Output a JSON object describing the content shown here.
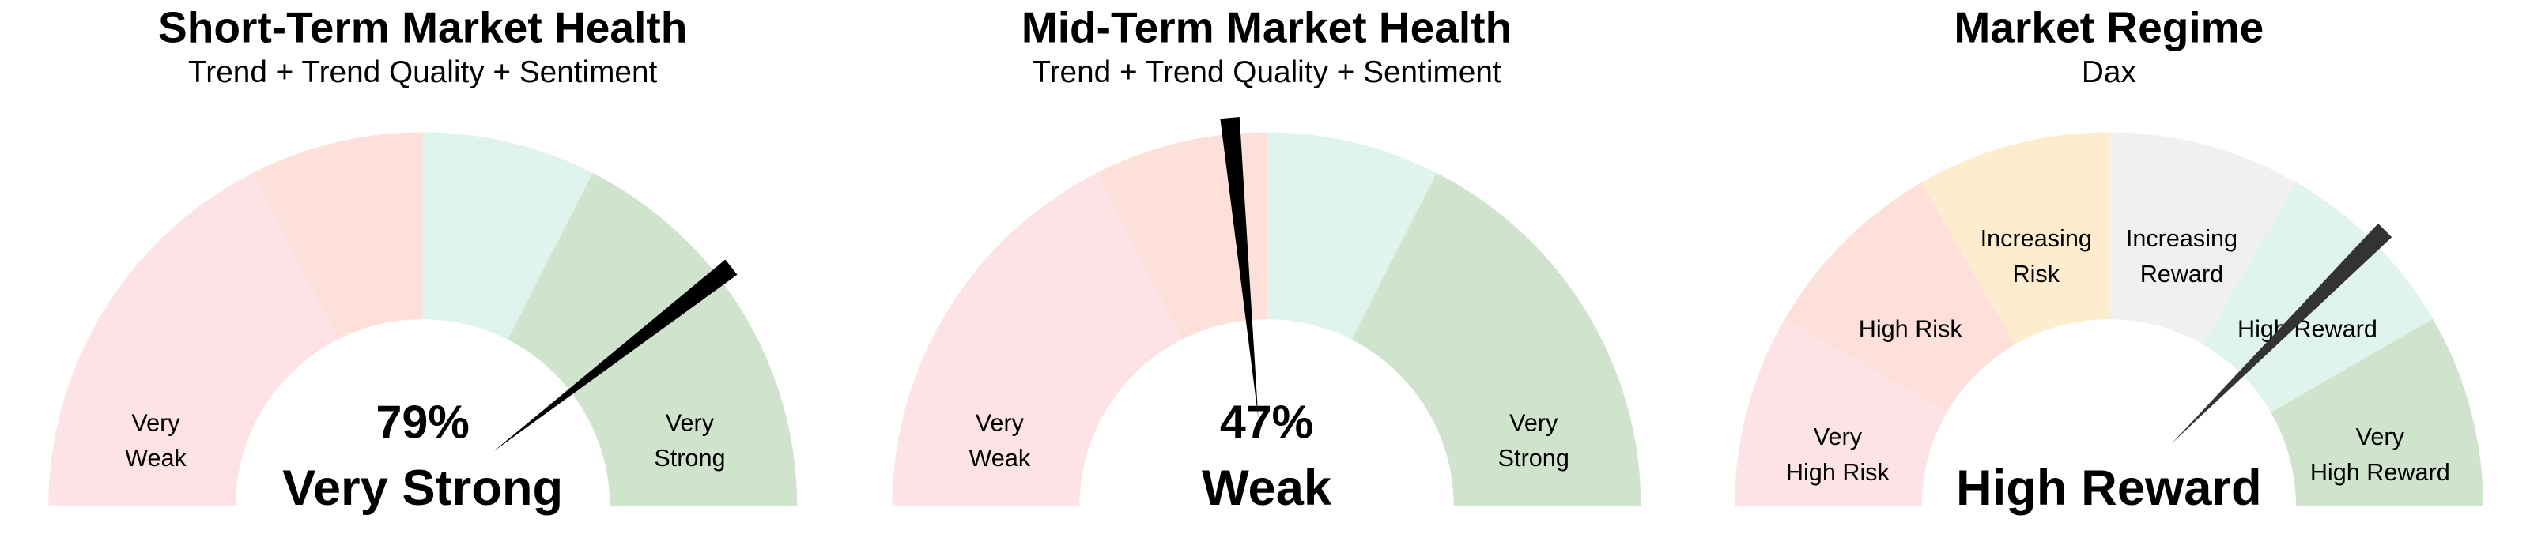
{
  "chart_data": [
    {
      "type": "gauge",
      "title": "Short-Term Market Health",
      "subtitle": "Trend + Trend Quality + Sentiment",
      "xlim": [
        0,
        100
      ],
      "bins": [
        0,
        35,
        50,
        65,
        100
      ],
      "categories": [
        [
          "Very",
          "Weak"
        ],
        null,
        null,
        [
          "Very",
          "Strong"
        ]
      ],
      "colors": [
        "#fde3e6",
        "#fde0da",
        "#e0f4ee",
        "#cfe3cd"
      ],
      "value": 79,
      "value_label": "79%",
      "center_label": "Very Strong",
      "needle_color": "#000000"
    },
    {
      "type": "gauge",
      "title": "Mid-Term Market Health",
      "subtitle": "Trend + Trend Quality + Sentiment",
      "xlim": [
        0,
        100
      ],
      "bins": [
        0,
        35,
        50,
        65,
        100
      ],
      "categories": [
        [
          "Very",
          "Weak"
        ],
        null,
        null,
        [
          "Very",
          "Strong"
        ]
      ],
      "colors": [
        "#fde3e6",
        "#fde0da",
        "#e0f4ee",
        "#cfe3cd"
      ],
      "value": 47,
      "value_label": "47%",
      "center_label": "Weak",
      "needle_color": "#000000"
    },
    {
      "type": "gauge",
      "title": "Market Regime",
      "subtitle": "Dax",
      "xlim": [
        0,
        100
      ],
      "bins": [
        0,
        16.7,
        33.3,
        50,
        66.7,
        83.3,
        100
      ],
      "categories": [
        [
          "Very",
          "High Risk"
        ],
        [
          "High Risk"
        ],
        [
          "Increasing",
          "Risk"
        ],
        [
          "Increasing",
          "Reward"
        ],
        [
          "High Reward"
        ],
        [
          "Very",
          "High Reward"
        ]
      ],
      "colors": [
        "#fde3e6",
        "#fde0da",
        "#fdecce",
        "#f0f0f0",
        "#e0f4ee",
        "#cfe3cd"
      ],
      "value": 75,
      "center_label": "High Reward",
      "needle_color": "#333333"
    }
  ]
}
